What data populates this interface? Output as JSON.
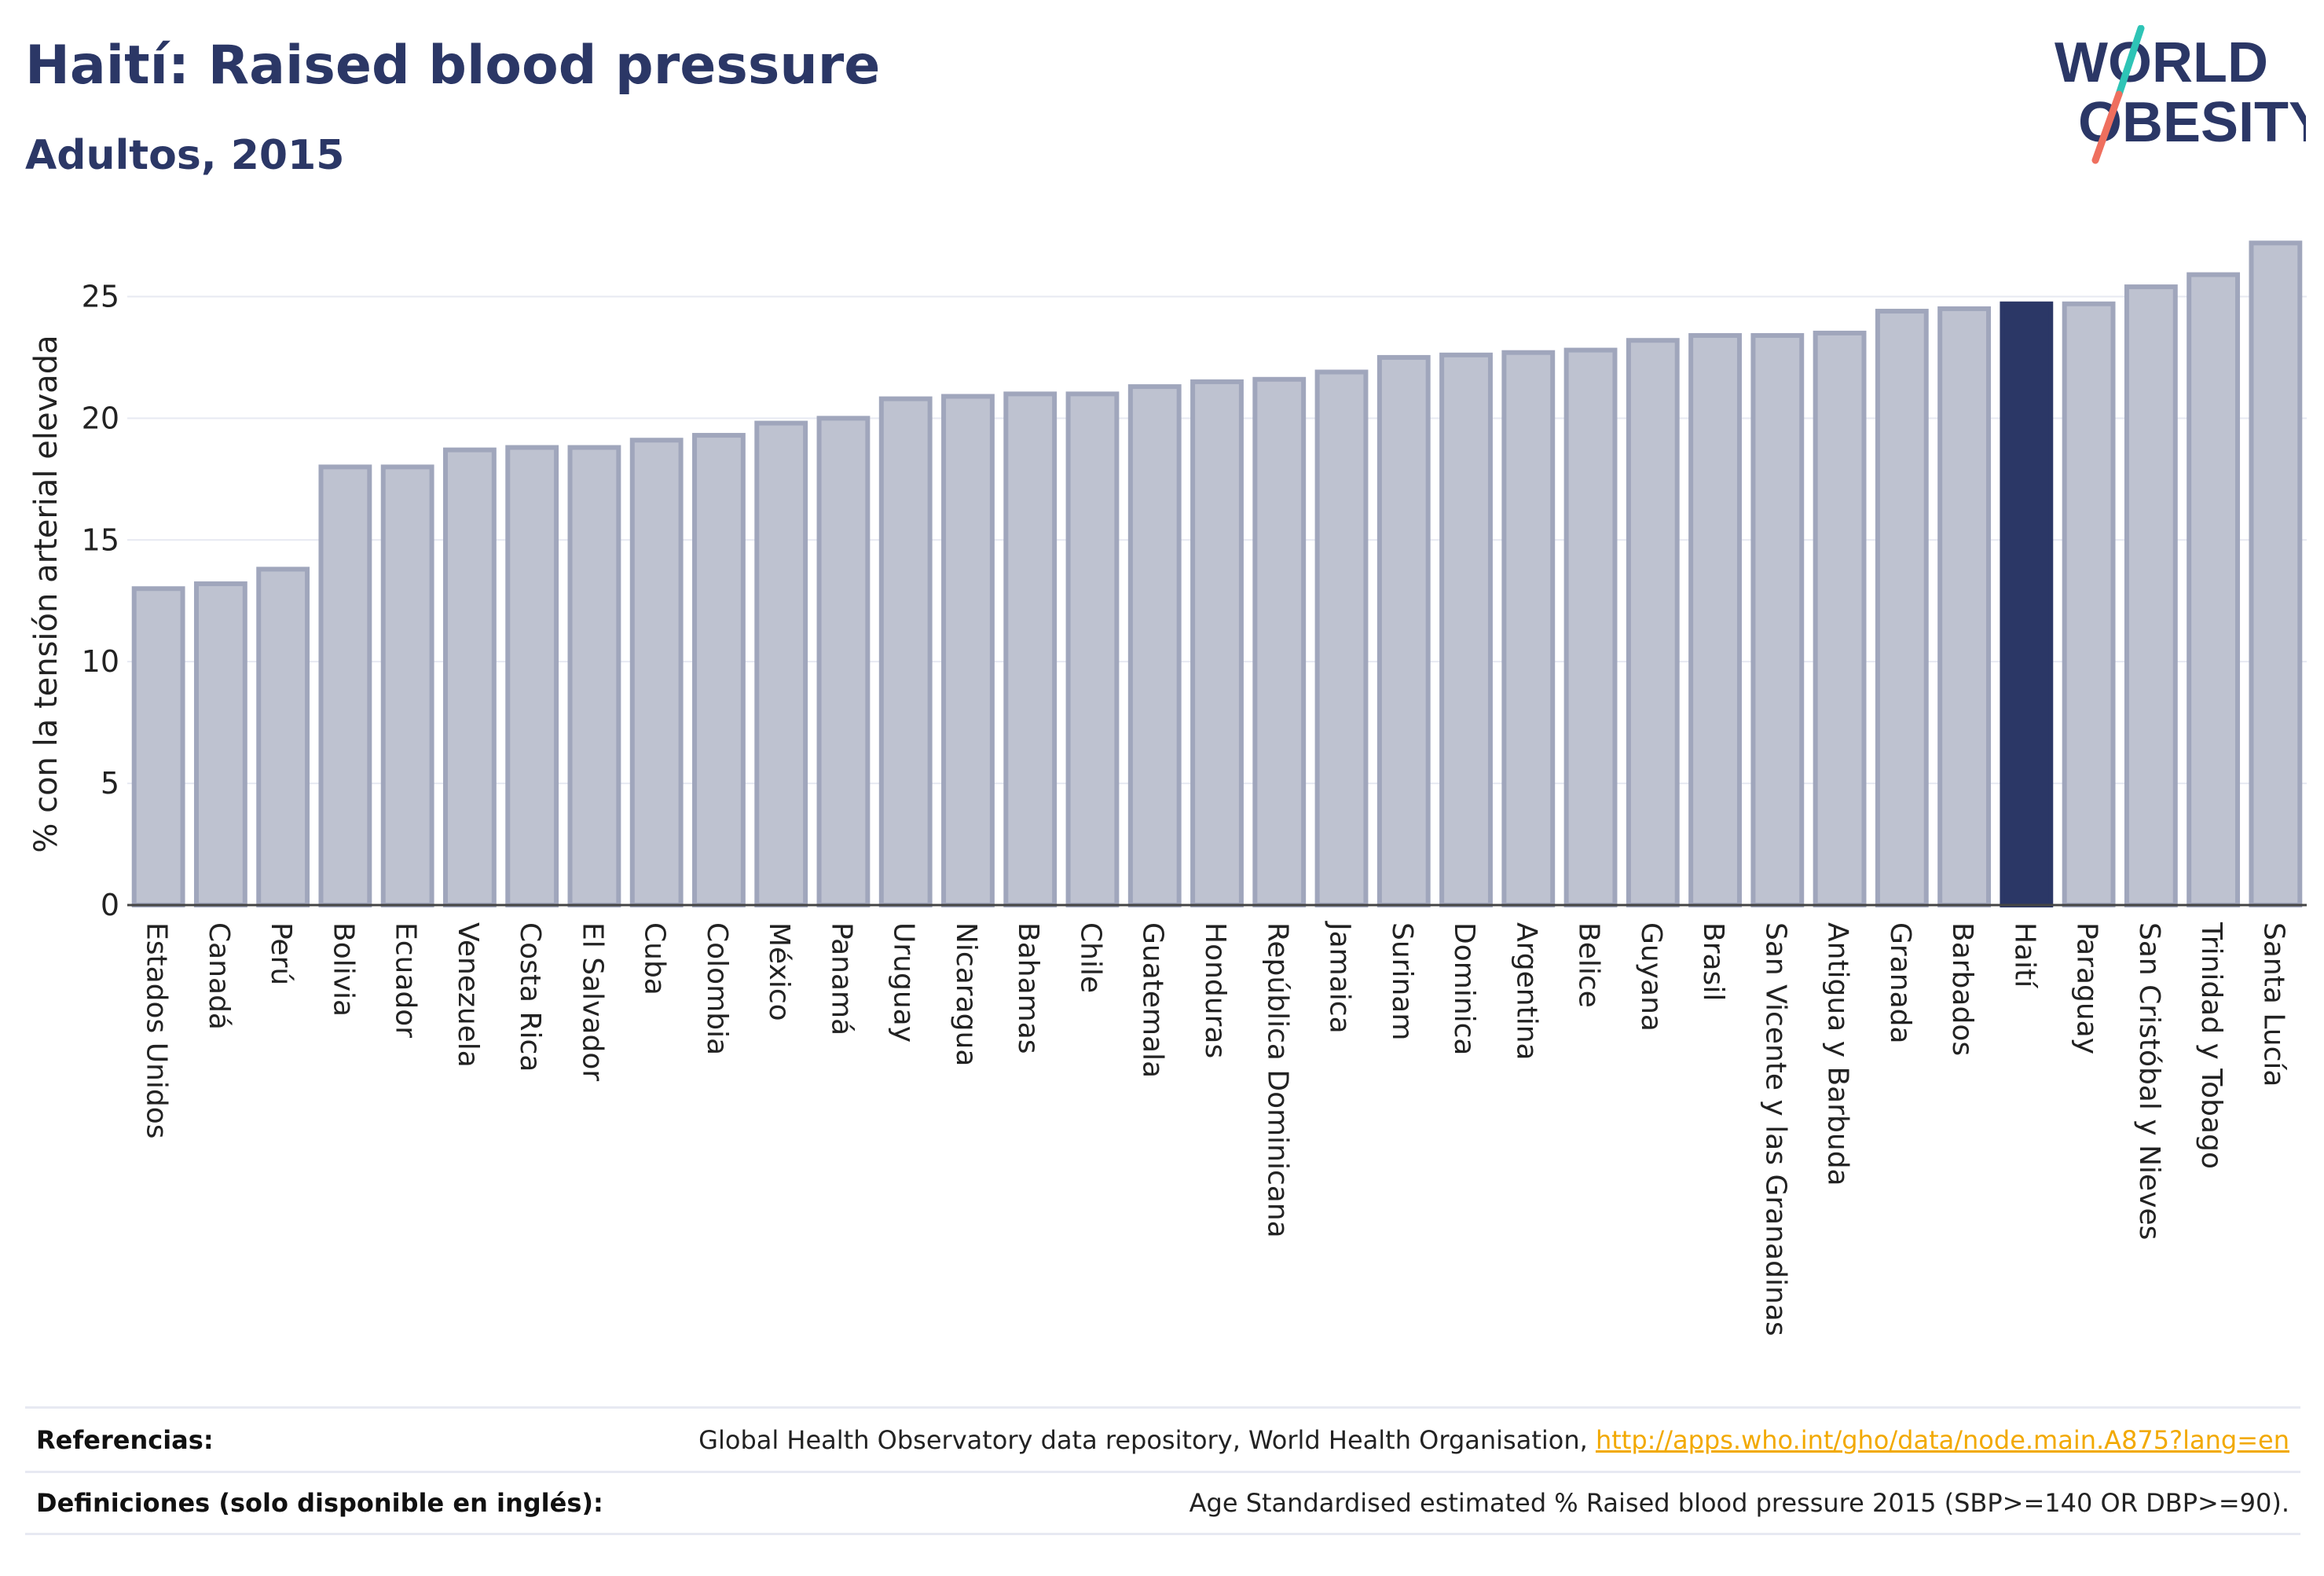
{
  "header": {
    "title": "Haití: Raised blood pressure",
    "subtitle": "Adultos, 2015"
  },
  "logo": {
    "line1": "WORLD",
    "line2": "OBESITY",
    "text_color": "#2b3766",
    "slash_color_top": "#2ec4b6",
    "slash_color_bottom": "#ef6f5e"
  },
  "colors": {
    "bar_fill": "#bec2d0",
    "bar_stroke": "#a0a6bc",
    "highlight_fill": "#2b3766",
    "grid": "#e7e9f2",
    "axis_text": "#222222"
  },
  "chart_data": {
    "type": "bar",
    "ylabel": "% con la tensión arterial elevada",
    "xlabel": "",
    "ylim": [
      0,
      27.5
    ],
    "yticks": [
      0,
      5,
      10,
      15,
      20,
      25
    ],
    "grid": true,
    "highlight": "Haití",
    "categories": [
      "Estados Unidos",
      "Canadá",
      "Perú",
      "Bolivia",
      "Ecuador",
      "Venezuela",
      "Costa Rica",
      "El Salvador",
      "Cuba",
      "Colombia",
      "México",
      "Panamá",
      "Uruguay",
      "Nicaragua",
      "Bahamas",
      "Chile",
      "Guatemala",
      "Honduras",
      "República Dominicana",
      "Jamaica",
      "Surinam",
      "Dominica",
      "Argentina",
      "Belice",
      "Guyana",
      "Brasil",
      "San Vicente y las Granadinas",
      "Antigua y Barbuda",
      "Granada",
      "Barbados",
      "Haití",
      "Paraguay",
      "San Cristóbal y Nieves",
      "Trinidad y Tobago",
      "Santa Lucía"
    ],
    "values": [
      13.0,
      13.2,
      13.8,
      18.0,
      18.0,
      18.7,
      18.8,
      18.8,
      19.1,
      19.3,
      19.8,
      20.0,
      20.8,
      20.9,
      21.0,
      21.0,
      21.3,
      21.5,
      21.6,
      21.9,
      22.5,
      22.6,
      22.7,
      22.8,
      23.2,
      23.4,
      23.4,
      23.5,
      24.4,
      24.5,
      24.7,
      24.7,
      25.4,
      25.9,
      27.2
    ]
  },
  "footer": {
    "references_label": "Referencias:",
    "references_text": "Global Health Observatory data repository, World Health Organisation, ",
    "references_link": "http://apps.who.int/gho/data/node.main.A875?lang=en",
    "definitions_label": "Definiciones (solo disponible en inglés):",
    "definitions_text": "Age Standardised estimated % Raised blood pressure 2015 (SBP>=140 OR DBP>=90)."
  }
}
